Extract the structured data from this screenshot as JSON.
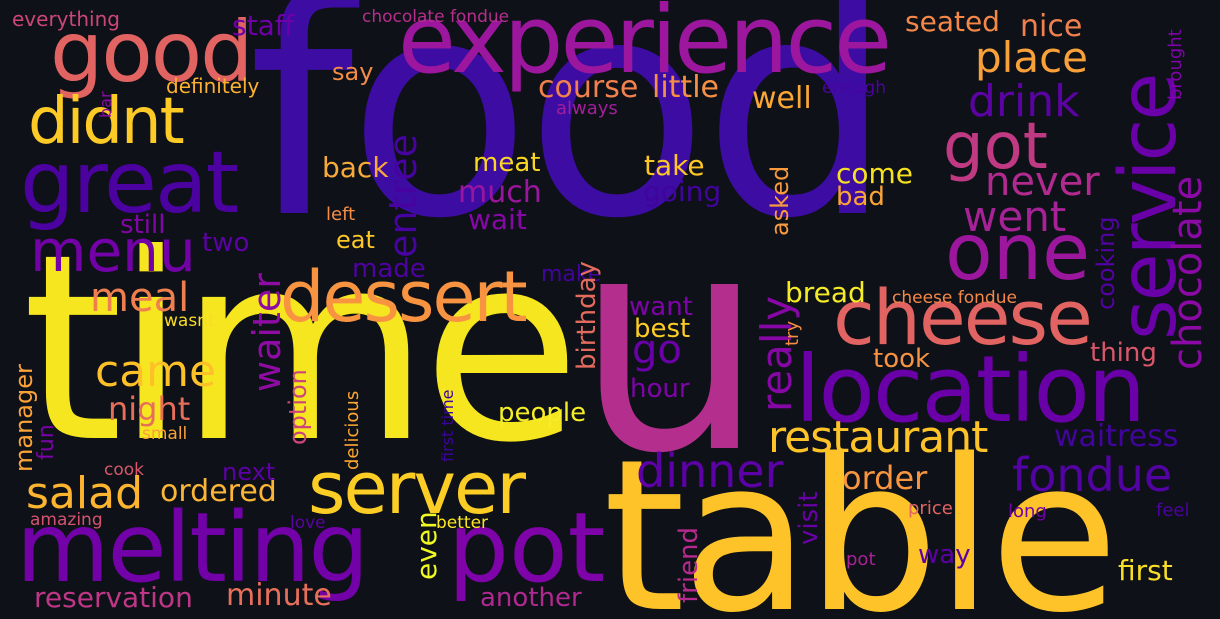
{
  "background": "#0e1117",
  "words": [
    {
      "text": "food",
      "color": "#3c0ca3"
    },
    {
      "text": "time",
      "color": "#f6e620"
    },
    {
      "text": "u",
      "color": "#b42e8e"
    },
    {
      "text": "table",
      "color": "#fdc328"
    },
    {
      "text": "experience",
      "color": "#9c179e"
    },
    {
      "text": "location",
      "color": "#6a00a8"
    },
    {
      "text": "melting",
      "color": "#7201a8"
    },
    {
      "text": "pot",
      "color": "#7e03a8"
    },
    {
      "text": "good",
      "color": "#e16462"
    },
    {
      "text": "great",
      "color": "#4c02a1"
    },
    {
      "text": "service",
      "color": "#6a00a8"
    },
    {
      "text": "cheese",
      "color": "#e16462"
    },
    {
      "text": "one",
      "color": "#9c179e"
    },
    {
      "text": "dessert",
      "color": "#f89441"
    },
    {
      "text": "server",
      "color": "#fcce25"
    },
    {
      "text": "didnt",
      "color": "#fdca26"
    },
    {
      "text": "got",
      "color": "#c03a83"
    },
    {
      "text": "restaurant",
      "color": "#fdc328"
    },
    {
      "text": "menu",
      "color": "#7301a8"
    },
    {
      "text": "chocolate",
      "color": "#8b0aa5"
    },
    {
      "text": "dinner",
      "color": "#5c01a6"
    },
    {
      "text": "fondue",
      "color": "#5302a3"
    },
    {
      "text": "salad",
      "color": "#fdb42f"
    },
    {
      "text": "came",
      "color": "#fec029"
    },
    {
      "text": "waiter",
      "color": "#8e0ca4"
    },
    {
      "text": "went",
      "color": "#a72197"
    },
    {
      "text": "drink",
      "color": "#5b02a3"
    },
    {
      "text": "place",
      "color": "#f8a13a"
    },
    {
      "text": "never",
      "color": "#b12a90"
    },
    {
      "text": "really",
      "color": "#8707a6"
    },
    {
      "text": "entree",
      "color": "#47039f"
    },
    {
      "text": "meal",
      "color": "#ef7f4f"
    },
    {
      "text": "go",
      "color": "#6a00a8"
    },
    {
      "text": "waitress",
      "color": "#41049d"
    },
    {
      "text": "order",
      "color": "#f89540"
    },
    {
      "text": "ordered",
      "color": "#fbb537"
    },
    {
      "text": "night",
      "color": "#e76f5a"
    },
    {
      "text": "minute",
      "color": "#e8705b"
    },
    {
      "text": "reservation",
      "color": "#bd3786"
    },
    {
      "text": "another",
      "color": "#b02991"
    },
    {
      "text": "first",
      "color": "#f8df25"
    },
    {
      "text": "even",
      "color": "#f0f921"
    },
    {
      "text": "course",
      "color": "#f1814d"
    },
    {
      "text": "little",
      "color": "#f79044"
    },
    {
      "text": "well",
      "color": "#fca636"
    },
    {
      "text": "nice",
      "color": "#f0804e"
    },
    {
      "text": "seated",
      "color": "#f48849"
    },
    {
      "text": "staff",
      "color": "#6f00a8"
    },
    {
      "text": "say",
      "color": "#f58c46"
    },
    {
      "text": "definitely",
      "color": "#fdb130"
    },
    {
      "text": "everything",
      "color": "#cc4778"
    },
    {
      "text": "chocolate fondue",
      "color": "#b52f8c"
    },
    {
      "text": "bar",
      "color": "#8b0aa5"
    },
    {
      "text": "always",
      "color": "#a31e9a"
    },
    {
      "text": "enough",
      "color": "#4b03a1"
    },
    {
      "text": "brought",
      "color": "#7e03a8"
    },
    {
      "text": "back",
      "color": "#f7a93a"
    },
    {
      "text": "meat",
      "color": "#fbd724"
    },
    {
      "text": "take",
      "color": "#fdc627"
    },
    {
      "text": "much",
      "color": "#9a169f"
    },
    {
      "text": "wait",
      "color": "#8606a6"
    },
    {
      "text": "going",
      "color": "#41049d"
    },
    {
      "text": "come",
      "color": "#f6e120"
    },
    {
      "text": "bad",
      "color": "#fca338"
    },
    {
      "text": "asked",
      "color": "#f99a3e"
    },
    {
      "text": "birthday",
      "color": "#e36b5d"
    },
    {
      "text": "still",
      "color": "#8106a6"
    },
    {
      "text": "left",
      "color": "#f58c46"
    },
    {
      "text": "two",
      "color": "#5c01a6"
    },
    {
      "text": "eat",
      "color": "#fdc827"
    },
    {
      "text": "made",
      "color": "#4e02a2"
    },
    {
      "text": "make",
      "color": "#41049d"
    },
    {
      "text": "want",
      "color": "#7e03a8"
    },
    {
      "text": "best",
      "color": "#fcce25"
    },
    {
      "text": "bread",
      "color": "#f5eb27"
    },
    {
      "text": "cheese fondue",
      "color": "#f48849"
    },
    {
      "text": "cooking",
      "color": "#5302a3"
    },
    {
      "text": "try",
      "color": "#f68d45"
    },
    {
      "text": "took",
      "color": "#f79342"
    },
    {
      "text": "thing",
      "color": "#d8576b"
    },
    {
      "text": "hour",
      "color": "#7e03a8"
    },
    {
      "text": "people",
      "color": "#f4ed27"
    },
    {
      "text": "option",
      "color": "#ca457a"
    },
    {
      "text": "manager",
      "color": "#fba238"
    },
    {
      "text": "fun",
      "color": "#7a02a8"
    },
    {
      "text": "small",
      "color": "#fba238"
    },
    {
      "text": "wasnt",
      "color": "#f9dc24"
    },
    {
      "text": "delicious",
      "color": "#fea632"
    },
    {
      "text": "first time",
      "color": "#3b049a"
    },
    {
      "text": "next",
      "color": "#5c01a6"
    },
    {
      "text": "visit",
      "color": "#6a00a8"
    },
    {
      "text": "friend",
      "color": "#b62a8f"
    },
    {
      "text": "cook",
      "color": "#d8576b"
    },
    {
      "text": "amazing",
      "color": "#d5536f"
    },
    {
      "text": "love",
      "color": "#5b02a3"
    },
    {
      "text": "better",
      "color": "#fde725"
    },
    {
      "text": "price",
      "color": "#e16462"
    },
    {
      "text": "long",
      "color": "#7201a8"
    },
    {
      "text": "feel",
      "color": "#4c02a1"
    },
    {
      "text": "pot",
      "color": "#a82296"
    },
    {
      "text": "way",
      "color": "#5c01a6"
    }
  ]
}
